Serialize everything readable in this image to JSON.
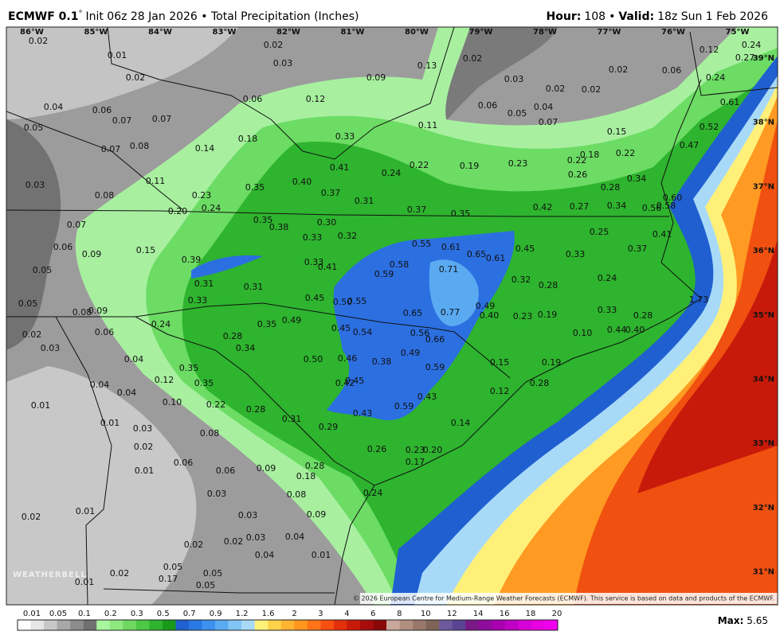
{
  "header": {
    "model": "ECMWF 0.1",
    "degree": "°",
    "title_rest": "Init 06z 28 Jan 2026 • Total Precipitation (Inches)",
    "hour_label": "Hour:",
    "hour": "108",
    "sep": "•",
    "valid_label": "Valid:",
    "valid": "18z Sun 1 Feb 2026"
  },
  "longitudes": [
    "86°W",
    "85°W",
    "84°W",
    "83°W",
    "82°W",
    "81°W",
    "80°W",
    "79°W",
    "78°W",
    "77°W",
    "76°W",
    "75°W"
  ],
  "latitudes": [
    "39°N",
    "38°N",
    "37°N",
    "36°N",
    "35°N",
    "34°N",
    "33°N",
    "32°N",
    "31°N"
  ],
  "map_labels": [
    "0.02",
    "0.01",
    "0.02",
    "0.03",
    "0.13",
    "0.02",
    "0.12",
    "0.24",
    "0.27",
    "0.02",
    "0.09",
    "0.03",
    "0.02",
    "0.02",
    "0.02",
    "0.06",
    "0.24",
    "0.04",
    "0.06",
    "0.07",
    "0.07",
    "0.06",
    "0.12",
    "0.06",
    "0.04",
    "0.05",
    "0.07",
    "0.11",
    "0.61",
    "0.05",
    "0.52",
    "0.15",
    "0.08",
    "0.07",
    "0.14",
    "0.18",
    "0.33",
    "0.47",
    "0.41",
    "0.24",
    "0.22",
    "0.19",
    "0.23",
    "0.18",
    "0.22",
    "0.22",
    "0.26",
    "0.03",
    "0.11",
    "0.35",
    "0.40",
    "0.37",
    "0.31",
    "0.28",
    "0.34",
    "0.08",
    "0.23",
    "0.60",
    "0.58",
    "0.56",
    "0.20",
    "0.24",
    "0.37",
    "0.35",
    "0.42",
    "0.27",
    "0.34",
    "0.07",
    "0.35",
    "0.38",
    "0.30",
    "0.25",
    "0.41",
    "0.06",
    "0.09",
    "0.15",
    "0.33",
    "0.32",
    "0.55",
    "0.61",
    "0.65",
    "0.61",
    "0.45",
    "0.33",
    "0.37",
    "0.39",
    "0.33",
    "0.41",
    "0.58",
    "0.59",
    "0.71",
    "0.05",
    "0.31",
    "0.31",
    "0.32",
    "0.28",
    "0.24",
    "0.33",
    "0.45",
    "0.50",
    "0.55",
    "0.49",
    "0.77",
    "0.65",
    "0.40",
    "0.23",
    "0.19",
    "0.33",
    "0.28",
    "1.73",
    "0.05",
    "0.08",
    "0.09",
    "0.24",
    "0.35",
    "0.49",
    "0.45",
    "0.54",
    "0.56",
    "0.66",
    "0.10",
    "0.44",
    "0.40",
    "0.02",
    "0.06",
    "0.28",
    "0.34",
    "0.03",
    "0.49",
    "0.04",
    "0.50",
    "0.46",
    "0.38",
    "0.59",
    "0.15",
    "0.19",
    "0.35",
    "0.04",
    "0.12",
    "0.35",
    "0.42",
    "0.45",
    "0.12",
    "0.28",
    "0.04",
    "0.43",
    "0.01",
    "0.10",
    "0.22",
    "0.28",
    "0.59",
    "0.43",
    "0.01",
    "0.03",
    "0.31",
    "0.29",
    "0.14",
    "0.08",
    "0.02",
    "0.26",
    "0.23",
    "0.20",
    "0.06",
    "0.17",
    "0.28",
    "0.01",
    "0.06",
    "0.09",
    "0.18",
    "0.24",
    "0.03",
    "0.08",
    "0.02",
    "0.01",
    "0.03",
    "0.09",
    "0.03",
    "0.04",
    "0.02",
    "0.02",
    "0.04",
    "0.01",
    "0.05",
    "0.02",
    "0.17",
    "0.05",
    "0.01",
    "0.05"
  ],
  "logo": "WEATHERBELL",
  "copyright": "© 2026 European Centre for Medium-Range Weather Forecasts (ECMWF). This service is based on data and products of the ECMWF.",
  "colorbar": {
    "labels": [
      "0.01",
      "0.05",
      "0.1",
      "0.2",
      "0.3",
      "0.5",
      "0.7",
      "0.9",
      "1.2",
      "1.6",
      "2",
      "3",
      "4",
      "6",
      "8",
      "10",
      "12",
      "14",
      "16",
      "18",
      "20"
    ],
    "colors": [
      "#ffffff",
      "#e6e6e6",
      "#c8c8c8",
      "#a8a8a8",
      "#8c8c8c",
      "#707070",
      "#a8f5a0",
      "#8ee880",
      "#6ed860",
      "#4cc844",
      "#2eb42e",
      "#1a9a1a",
      "#1f5fd0",
      "#2a78e4",
      "#3c92ee",
      "#5aaaf2",
      "#82c4f6",
      "#a8daf8",
      "#fff07a",
      "#ffd24a",
      "#ffb530",
      "#ff9620",
      "#ff7418",
      "#f85010",
      "#e4300c",
      "#c81a0a",
      "#a80c0c",
      "#8a0808",
      "#c8a89a",
      "#b08e80",
      "#98786a",
      "#806458",
      "#6c5a9c",
      "#5c4494",
      "#7a1888",
      "#900c9c",
      "#a800b0",
      "#c000c4",
      "#d800d8",
      "#e800e0",
      "#f000ec"
    ]
  },
  "max_label": "Max:",
  "max_value": "5.65"
}
